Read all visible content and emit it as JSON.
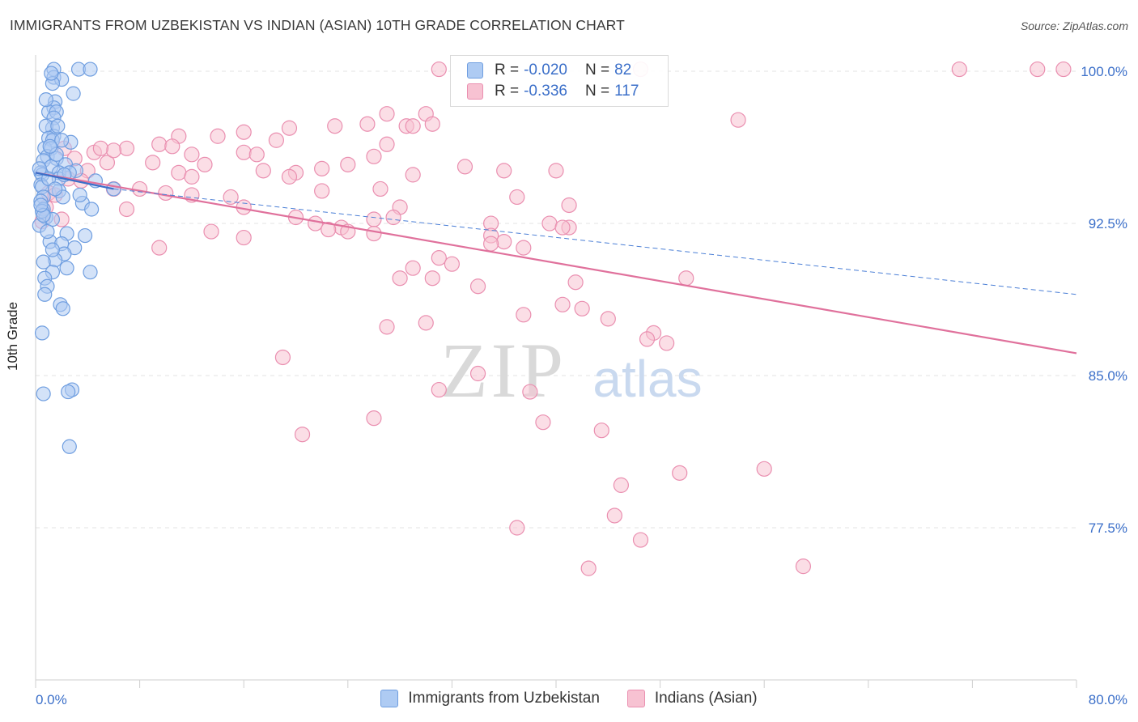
{
  "title": "IMMIGRANTS FROM UZBEKISTAN VS INDIAN (ASIAN) 10TH GRADE CORRELATION CHART",
  "source": "Source: ZipAtlas.com",
  "watermark": {
    "zip": "ZIP",
    "atlas": "atlas"
  },
  "colors": {
    "blue": "#6f9ee0",
    "blue_fill": "#aecbf3",
    "pink": "#e0719c",
    "pink_fill": "#f7c2d2",
    "accent_text": "#3b6fc9"
  },
  "legend_top": {
    "series1": {
      "r_label": "R =",
      "r_value": "-0.020",
      "n_label": "N =",
      "n_value": "82"
    },
    "series2": {
      "r_label": "R =",
      "r_value": "-0.336",
      "n_label": "N =",
      "n_value": "117"
    }
  },
  "legend_bottom": {
    "series1": "Immigrants from Uzbekistan",
    "series2": "Indians (Asian)"
  },
  "chart_data": {
    "type": "scatter",
    "title": "IMMIGRANTS FROM UZBEKISTAN VS INDIAN (ASIAN) 10TH GRADE CORRELATION CHART",
    "xlabel": "",
    "ylabel": "10th Grade",
    "xlim": [
      0,
      80
    ],
    "ylim": [
      70,
      100.8
    ],
    "x_tick_labels": [
      "0.0%",
      "80.0%"
    ],
    "y_ticks": [
      77.5,
      85.0,
      92.5,
      100.0
    ],
    "y_tick_labels": [
      "77.5%",
      "85.0%",
      "92.5%",
      "100.0%"
    ],
    "grid": true,
    "legend_placement": "top-center",
    "series": [
      {
        "name": "Immigrants from Uzbekistan",
        "color": "#6f9ee0",
        "r": -0.02,
        "n": 82,
        "trend_solid": [
          [
            0,
            95.0
          ],
          [
            6.0,
            94.2
          ]
        ],
        "trend_dashed": [
          [
            6.0,
            94.2
          ],
          [
            80,
            89.0
          ]
        ],
        "points": [
          [
            1.4,
            100.1
          ],
          [
            3.3,
            100.1
          ],
          [
            4.2,
            100.1
          ],
          [
            1.4,
            99.7
          ],
          [
            2.0,
            99.6
          ],
          [
            1.3,
            99.4
          ],
          [
            1.5,
            98.5
          ],
          [
            1.4,
            98.2
          ],
          [
            1.0,
            98.0
          ],
          [
            1.6,
            98.0
          ],
          [
            1.4,
            97.7
          ],
          [
            1.3,
            97.2
          ],
          [
            0.8,
            97.3
          ],
          [
            1.4,
            96.8
          ],
          [
            1.0,
            96.7
          ],
          [
            1.3,
            96.6
          ],
          [
            2.7,
            96.5
          ],
          [
            0.7,
            96.2
          ],
          [
            1.2,
            96.2
          ],
          [
            0.9,
            95.8
          ],
          [
            1.6,
            95.7
          ],
          [
            0.6,
            95.6
          ],
          [
            1.2,
            95.3
          ],
          [
            2.3,
            95.4
          ],
          [
            3.1,
            95.1
          ],
          [
            1.8,
            95.0
          ],
          [
            0.4,
            95.0
          ],
          [
            0.5,
            94.9
          ],
          [
            1.8,
            94.7
          ],
          [
            4.6,
            94.6
          ],
          [
            0.4,
            94.4
          ],
          [
            0.5,
            94.3
          ],
          [
            6.0,
            94.2
          ],
          [
            1.8,
            94.1
          ],
          [
            0.6,
            93.8
          ],
          [
            0.4,
            93.6
          ],
          [
            3.6,
            93.5
          ],
          [
            4.3,
            93.2
          ],
          [
            0.6,
            93.2
          ],
          [
            0.8,
            92.8
          ],
          [
            1.3,
            92.7
          ],
          [
            2.4,
            92.0
          ],
          [
            1.1,
            91.6
          ],
          [
            2.0,
            91.5
          ],
          [
            3.0,
            91.3
          ],
          [
            2.2,
            91.0
          ],
          [
            1.5,
            90.7
          ],
          [
            0.6,
            90.6
          ],
          [
            2.4,
            90.3
          ],
          [
            4.2,
            90.1
          ],
          [
            1.3,
            90.1
          ],
          [
            0.7,
            89.8
          ],
          [
            0.9,
            89.4
          ],
          [
            0.7,
            89.0
          ],
          [
            1.9,
            88.5
          ],
          [
            2.1,
            88.3
          ],
          [
            0.5,
            87.1
          ],
          [
            2.8,
            84.3
          ],
          [
            2.5,
            84.2
          ],
          [
            0.6,
            84.1
          ],
          [
            2.6,
            81.5
          ],
          [
            0.3,
            92.4
          ],
          [
            0.9,
            92.1
          ],
          [
            1.6,
            95.9
          ],
          [
            2.1,
            93.8
          ],
          [
            1.0,
            94.7
          ],
          [
            0.3,
            95.2
          ],
          [
            2.0,
            96.6
          ],
          [
            1.1,
            96.3
          ],
          [
            0.5,
            93.1
          ],
          [
            1.3,
            91.2
          ],
          [
            3.4,
            93.9
          ],
          [
            2.6,
            95.0
          ],
          [
            1.7,
            97.3
          ],
          [
            0.8,
            98.6
          ],
          [
            1.2,
            99.9
          ],
          [
            2.9,
            98.9
          ],
          [
            0.6,
            92.9
          ],
          [
            1.5,
            94.2
          ],
          [
            2.2,
            94.9
          ],
          [
            3.8,
            91.9
          ],
          [
            0.4,
            93.4
          ]
        ]
      },
      {
        "name": "Indians (Asian)",
        "color": "#e0719c",
        "r": -0.336,
        "n": 117,
        "trend": [
          [
            0,
            95.0
          ],
          [
            80,
            86.1
          ]
        ],
        "points": [
          [
            31,
            100.1
          ],
          [
            46.5,
            100.1
          ],
          [
            71,
            100.1
          ],
          [
            77,
            100.1
          ],
          [
            79,
            100.1
          ],
          [
            30,
            97.9
          ],
          [
            27,
            97.9
          ],
          [
            28.5,
            97.3
          ],
          [
            25.5,
            97.4
          ],
          [
            29,
            97.3
          ],
          [
            30.5,
            97.4
          ],
          [
            23,
            97.3
          ],
          [
            19.5,
            97.2
          ],
          [
            16,
            97.0
          ],
          [
            11,
            96.8
          ],
          [
            14,
            96.8
          ],
          [
            18.5,
            96.6
          ],
          [
            27,
            96.4
          ],
          [
            9.5,
            96.4
          ],
          [
            10.5,
            96.3
          ],
          [
            7,
            96.2
          ],
          [
            16,
            96.0
          ],
          [
            4.5,
            96.0
          ],
          [
            12,
            95.9
          ],
          [
            17,
            95.9
          ],
          [
            26,
            95.8
          ],
          [
            5.5,
            95.5
          ],
          [
            9,
            95.5
          ],
          [
            13,
            95.4
          ],
          [
            24,
            95.4
          ],
          [
            17.5,
            95.1
          ],
          [
            22,
            95.2
          ],
          [
            33,
            95.3
          ],
          [
            40,
            95.1
          ],
          [
            11,
            95.0
          ],
          [
            36,
            95.1
          ],
          [
            20,
            95.0
          ],
          [
            29,
            94.9
          ],
          [
            12,
            94.8
          ],
          [
            19.5,
            94.8
          ],
          [
            6,
            94.2
          ],
          [
            10,
            94.0
          ],
          [
            22,
            94.1
          ],
          [
            26.5,
            94.2
          ],
          [
            12,
            93.9
          ],
          [
            15,
            93.8
          ],
          [
            37,
            93.8
          ],
          [
            41,
            93.4
          ],
          [
            16,
            93.3
          ],
          [
            28,
            93.3
          ],
          [
            7,
            93.2
          ],
          [
            27.5,
            92.8
          ],
          [
            20,
            92.8
          ],
          [
            26,
            92.7
          ],
          [
            39.5,
            92.5
          ],
          [
            41,
            92.3
          ],
          [
            21.5,
            92.5
          ],
          [
            23.5,
            92.3
          ],
          [
            35,
            92.5
          ],
          [
            40.5,
            92.3
          ],
          [
            22.5,
            92.2
          ],
          [
            13.5,
            92.1
          ],
          [
            26,
            92.0
          ],
          [
            24,
            92.1
          ],
          [
            35,
            91.9
          ],
          [
            16,
            91.8
          ],
          [
            36,
            91.6
          ],
          [
            35,
            91.5
          ],
          [
            37.5,
            91.3
          ],
          [
            9.5,
            91.3
          ],
          [
            31,
            90.8
          ],
          [
            32,
            90.5
          ],
          [
            29,
            90.3
          ],
          [
            30.5,
            89.8
          ],
          [
            28,
            89.8
          ],
          [
            34,
            89.4
          ],
          [
            41.5,
            89.6
          ],
          [
            50,
            89.8
          ],
          [
            40.5,
            88.5
          ],
          [
            42,
            88.3
          ],
          [
            37.5,
            88.0
          ],
          [
            30,
            87.6
          ],
          [
            27,
            87.4
          ],
          [
            44,
            87.8
          ],
          [
            47.5,
            87.1
          ],
          [
            47,
            86.8
          ],
          [
            48.5,
            86.6
          ],
          [
            34,
            85.1
          ],
          [
            19,
            85.9
          ],
          [
            31,
            84.3
          ],
          [
            38,
            84.2
          ],
          [
            26,
            82.9
          ],
          [
            39,
            82.7
          ],
          [
            43.5,
            82.3
          ],
          [
            20.5,
            82.1
          ],
          [
            49.5,
            80.2
          ],
          [
            56,
            80.4
          ],
          [
            45,
            79.6
          ],
          [
            44.5,
            78.1
          ],
          [
            37,
            77.5
          ],
          [
            46.5,
            76.9
          ],
          [
            42.5,
            75.5
          ],
          [
            59,
            75.6
          ],
          [
            0.5,
            92.6
          ],
          [
            2,
            92.7
          ],
          [
            1,
            94.0
          ],
          [
            2.5,
            94.7
          ],
          [
            4,
            95.1
          ],
          [
            6,
            96.1
          ],
          [
            3,
            95.7
          ],
          [
            1.5,
            93.9
          ],
          [
            5,
            96.2
          ],
          [
            8,
            94.2
          ],
          [
            3.5,
            94.6
          ],
          [
            2.2,
            96.2
          ],
          [
            0.8,
            93.3
          ],
          [
            54,
            97.6
          ]
        ]
      }
    ]
  }
}
